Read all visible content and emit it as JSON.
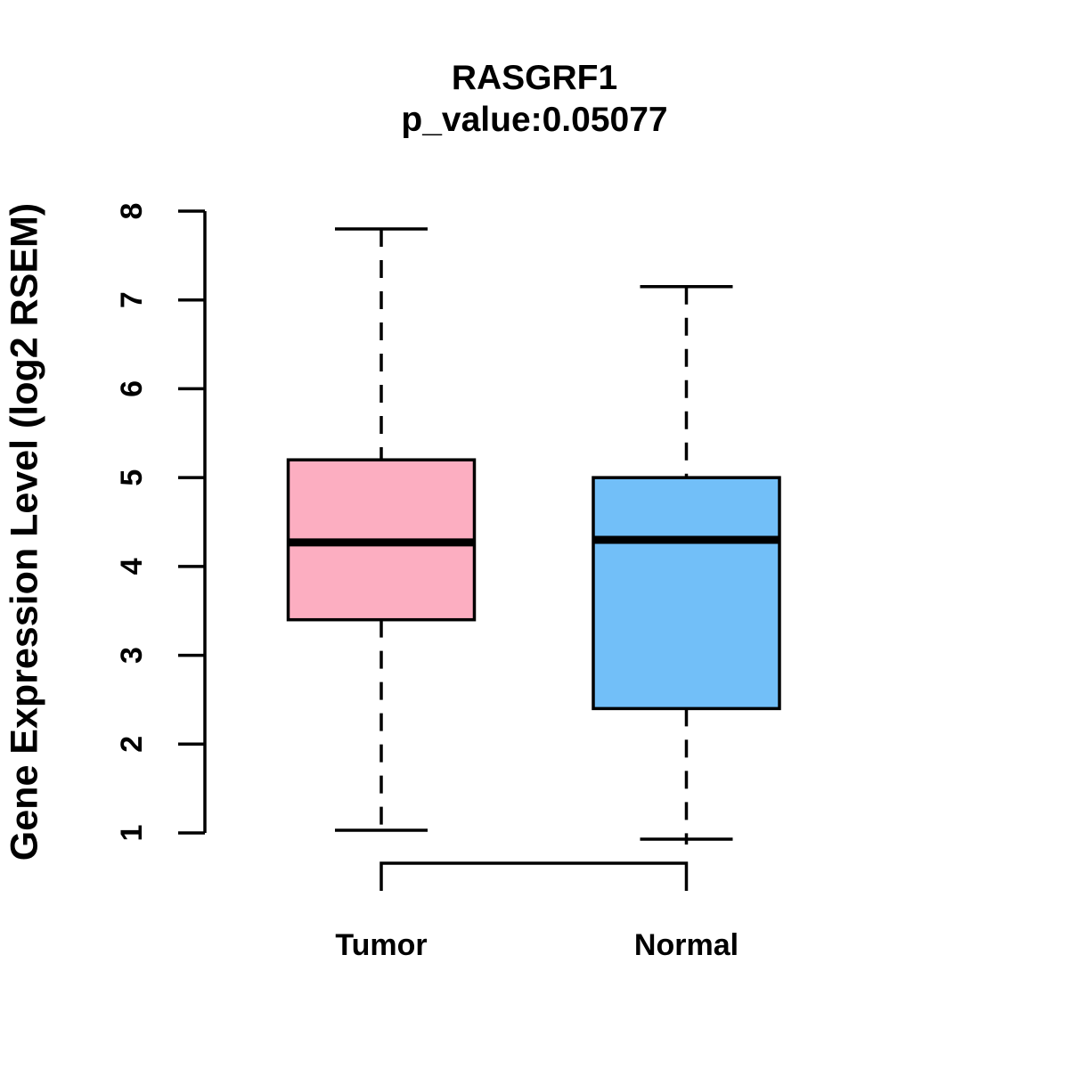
{
  "chart_data": {
    "type": "boxplot",
    "title": "RASGRF1",
    "subtitle": "p_value:0.05077",
    "ylabel": "Gene Expression Level (log2 RSEM)",
    "ylim": [
      1,
      8
    ],
    "yticks": [
      1,
      2,
      3,
      4,
      5,
      6,
      7,
      8
    ],
    "categories": [
      "Tumor",
      "Normal"
    ],
    "series": [
      {
        "name": "Tumor",
        "color": "#FCAEC1",
        "whisker_low": 1.03,
        "q1": 3.4,
        "median": 4.27,
        "q3": 5.2,
        "whisker_high": 7.8
      },
      {
        "name": "Normal",
        "color": "#72BFF8",
        "whisker_low": 0.93,
        "q1": 2.4,
        "median": 4.3,
        "q3": 5.0,
        "whisker_high": 7.15
      }
    ],
    "grid": false,
    "legend": "none",
    "line_color": "#000000",
    "background": "#FFFFFF"
  }
}
